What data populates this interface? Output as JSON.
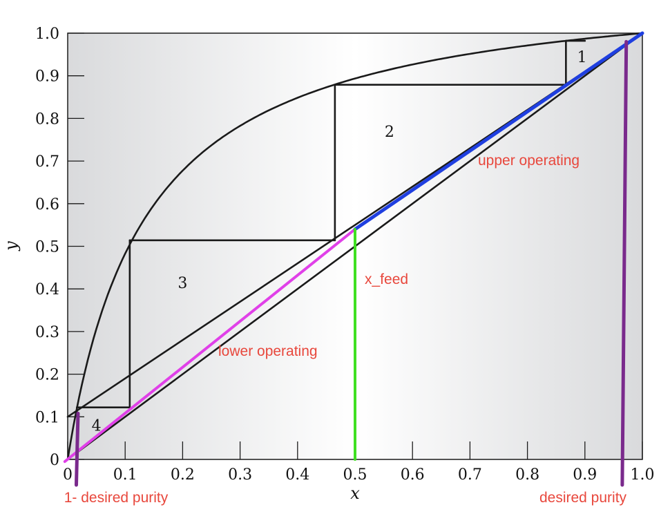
{
  "chart_data": {
    "type": "line",
    "xlabel": "x",
    "ylabel": "y",
    "xlim": [
      0,
      1
    ],
    "ylim": [
      0,
      1
    ],
    "x_ticks": [
      "0",
      "0.1",
      "0.2",
      "0.3",
      "0.4",
      "0.5",
      "0.6",
      "0.7",
      "0.8",
      "0.9",
      "1.0"
    ],
    "y_ticks": [
      "0",
      "0.1",
      "0.2",
      "0.3",
      "0.4",
      "0.5",
      "0.6",
      "0.7",
      "0.8",
      "0.9",
      "1.0"
    ],
    "equilibrium_relative_volatility": 8.4,
    "diagonal": {
      "x": [
        0,
        1
      ],
      "y": [
        0,
        1
      ]
    },
    "stepping_lower_line": {
      "x": [
        0,
        1
      ],
      "y": [
        0.1,
        1.0
      ]
    },
    "upper_operating": {
      "x": [
        0.5,
        1.0
      ],
      "y": [
        0.54,
        1.0
      ]
    },
    "lower_operating": {
      "x": [
        -0.005,
        0.5
      ],
      "y": [
        -0.005,
        0.54
      ]
    },
    "x_feed": {
      "x": 0.5,
      "y": [
        0,
        0.54
      ]
    },
    "desired_purity": {
      "x_bottom": 0.965,
      "x_top": 0.972
    },
    "one_minus_desired_purity": {
      "x_bottom": 0.015,
      "x_top": 0.018
    },
    "stages": [
      {
        "label": "1",
        "x_start": 0.9,
        "y": 0.982,
        "x_eq": 0.867,
        "y_next": 0.879,
        "label_x": 0.895,
        "label_y": 0.945
      },
      {
        "label": "2",
        "x_start": 0.867,
        "y": 0.879,
        "x_eq": 0.465,
        "y_next": 0.514,
        "label_x": 0.56,
        "label_y": 0.77
      },
      {
        "label": "3",
        "x_start": 0.465,
        "y": 0.514,
        "x_eq": 0.108,
        "y_next": 0.122,
        "label_x": 0.2,
        "label_y": 0.415
      },
      {
        "label": "4",
        "x_start": 0.108,
        "y": 0.122,
        "x_eq": 0.016,
        "y_next": 0.1,
        "label_x": 0.05,
        "label_y": 0.08
      }
    ],
    "annotations": {
      "upper_operating": "upper operating",
      "lower_operating": "lower operating",
      "x_feed": "x_feed",
      "desired_purity": "desired purity",
      "one_minus_desired_purity": "1- desired purity"
    },
    "colors": {
      "curves": "#1a1a1a",
      "upper_operating": "#1f3fe0",
      "lower_operating": "#e040e8",
      "x_feed": "#3fe021",
      "purity_markers": "#7a2a8c",
      "annotations": "#e8473c"
    }
  }
}
